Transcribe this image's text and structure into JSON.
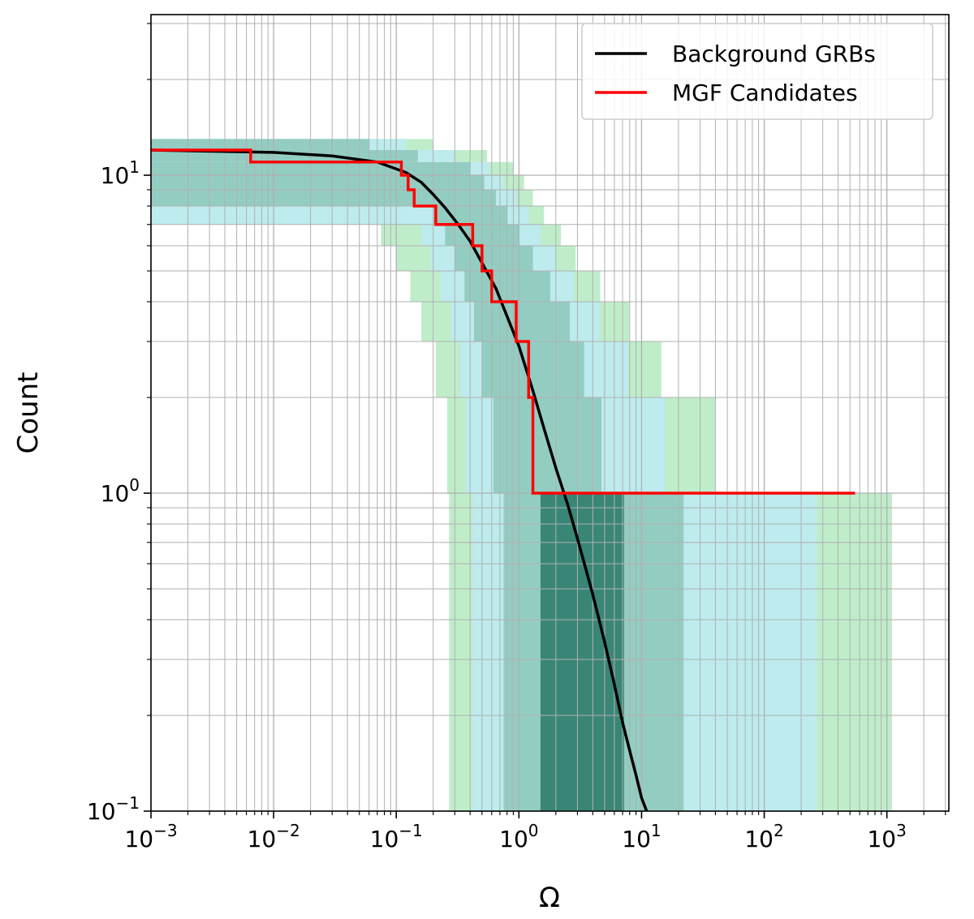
{
  "chart_data": {
    "type": "line",
    "title": "",
    "xlabel": "Ω",
    "ylabel": "Count",
    "x_scale": "log",
    "y_scale": "log",
    "xlim": [
      0.001,
      3200
    ],
    "ylim": [
      0.1,
      32
    ],
    "x_ticks": [
      {
        "value": 0.001,
        "base": "10",
        "exp": "−3"
      },
      {
        "value": 0.01,
        "base": "10",
        "exp": "−2"
      },
      {
        "value": 0.1,
        "base": "10",
        "exp": "−1"
      },
      {
        "value": 1,
        "base": "10",
        "exp": "0"
      },
      {
        "value": 10,
        "base": "10",
        "exp": "1"
      },
      {
        "value": 100,
        "base": "10",
        "exp": "2"
      },
      {
        "value": 1000,
        "base": "10",
        "exp": "3"
      }
    ],
    "y_ticks": [
      {
        "value": 0.1,
        "base": "10",
        "exp": "−1"
      },
      {
        "value": 1,
        "base": "10",
        "exp": "0"
      },
      {
        "value": 10,
        "base": "10",
        "exp": "1"
      }
    ],
    "grid": true,
    "grid_minor": true,
    "legend_position": "top-right",
    "colors": {
      "band_1sigma": "#3a8676",
      "band_2sigma": "#93cdc2",
      "band_3sigma": "#bdebee",
      "band_4sigma": "#bfedca",
      "grid": "#b0b0b0"
    },
    "confidence_bands": [
      {
        "y_low": 0.1,
        "y_high": 1,
        "x_edges": [
          0.27,
          0.42,
          0.75,
          1.5,
          7.2,
          22,
          270,
          1100
        ]
      },
      {
        "y_low": 1,
        "y_high": 2,
        "x_edges": [
          0.26,
          0.37,
          0.62,
          1.2,
          4.7,
          15.5,
          40
        ]
      },
      {
        "y_low": 2,
        "y_high": 3,
        "x_edges": [
          0.21,
          0.33,
          0.5,
          0.84,
          3.4,
          7.7,
          14.5
        ]
      },
      {
        "y_low": 3,
        "y_high": 4,
        "x_edges": [
          0.16,
          0.28,
          0.43,
          0.73,
          2.6,
          4.5,
          7.9
        ]
      },
      {
        "y_low": 4,
        "y_high": 5,
        "x_edges": [
          0.13,
          0.23,
          0.36,
          0.61,
          1.8,
          2.8,
          4.6
        ]
      },
      {
        "y_low": 5,
        "y_high": 6,
        "x_edges": [
          0.1,
          0.19,
          0.3,
          0.5,
          1.3,
          2.0,
          2.9
        ]
      },
      {
        "y_low": 6,
        "y_high": 7,
        "x_edges": [
          0.075,
          0.16,
          0.25,
          0.42,
          1.0,
          1.5,
          2.2
        ]
      },
      {
        "y_low": 7,
        "y_high": 8,
        "x_edges": [
          0.001,
          0.001,
          0.2,
          0.35,
          0.8,
          1.2,
          1.6
        ]
      },
      {
        "y_low": 8,
        "y_high": 9,
        "x_edges": [
          0.001,
          0.001,
          0.001,
          0.3,
          0.65,
          0.95,
          1.3
        ]
      },
      {
        "y_low": 9,
        "y_high": 10,
        "x_edges": [
          0.001,
          0.001,
          0.001,
          0.25,
          0.52,
          0.75,
          1.1
        ]
      },
      {
        "y_low": 10,
        "y_high": 11,
        "x_edges": [
          0.001,
          0.001,
          0.001,
          0.001,
          0.4,
          0.58,
          0.9
        ]
      },
      {
        "y_low": 11,
        "y_high": 12,
        "x_edges": [
          0.001,
          0.001,
          0.001,
          0.001,
          0.15,
          0.3,
          0.55
        ]
      },
      {
        "y_low": 12,
        "y_high": 13,
        "x_edges": [
          0.001,
          0.001,
          0.001,
          0.001,
          0.06,
          0.12,
          0.2
        ]
      }
    ],
    "series": [
      {
        "name": "Background GRBs",
        "color": "#000000",
        "x": [
          0.001,
          0.003,
          0.01,
          0.03,
          0.07,
          0.12,
          0.16,
          0.2,
          0.25,
          0.32,
          0.4,
          0.5,
          0.65,
          0.8,
          1.0,
          1.3,
          1.6,
          2.0,
          2.5,
          3.0,
          3.5,
          4.0,
          5.0,
          6.0,
          7.0,
          8.0,
          9.0,
          10.0,
          11.0
        ],
        "y": [
          12.0,
          11.9,
          11.8,
          11.5,
          11.0,
          10.2,
          9.5,
          8.7,
          7.9,
          7.0,
          6.2,
          5.3,
          4.4,
          3.6,
          2.9,
          2.1,
          1.6,
          1.2,
          0.92,
          0.72,
          0.58,
          0.48,
          0.34,
          0.25,
          0.19,
          0.155,
          0.13,
          0.11,
          0.1
        ]
      },
      {
        "name": "MGF Candidates",
        "color": "#ff0000",
        "step": true,
        "x": [
          0.001,
          0.0065,
          0.11,
          0.125,
          0.14,
          0.21,
          0.31,
          0.42,
          0.5,
          0.6,
          0.77,
          0.95,
          1.2,
          1.3,
          1.5,
          550
        ],
        "y": [
          12,
          11,
          10,
          9,
          8,
          7,
          7,
          6,
          5,
          4,
          4,
          3,
          2,
          1,
          1,
          1
        ]
      }
    ]
  }
}
